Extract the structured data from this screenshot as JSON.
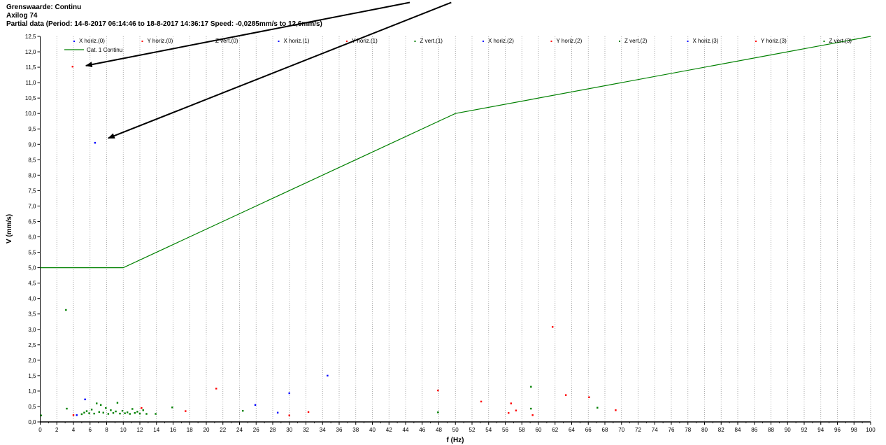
{
  "header": {
    "line1": "Grenswaarde: Continu",
    "line2": "Axilog 74",
    "line3": "Partial data (Period: 14-8-2017 06:14:46 to 18-8-2017 14:36:17 Speed: -0,0285mm/s to 12,6mm/s)"
  },
  "chart_data": {
    "type": "scatter",
    "xlabel": "f (Hz)",
    "ylabel": "V (mm/s)",
    "xlim": [
      0,
      100
    ],
    "ylim": [
      0,
      12.5
    ],
    "x_ticks": [
      "0",
      "2",
      "4",
      "6",
      "8",
      "10",
      "12",
      "14",
      "16",
      "18",
      "20",
      "22",
      "24",
      "26",
      "28",
      "30",
      "32",
      "34",
      "36",
      "38",
      "40",
      "42",
      "44",
      "46",
      "48",
      "50",
      "52",
      "54",
      "56",
      "58",
      "60",
      "62",
      "64",
      "66",
      "68",
      "70",
      "72",
      "74",
      "76",
      "78",
      "80",
      "82",
      "84",
      "86",
      "88",
      "90",
      "92",
      "94",
      "96",
      "98",
      "100"
    ],
    "y_ticks": [
      "0,0",
      "0,5",
      "1,0",
      "1,5",
      "2,0",
      "2,5",
      "3,0",
      "3,5",
      "4,0",
      "4,5",
      "5,0",
      "5,5",
      "6,0",
      "6,5",
      "7,0",
      "7,5",
      "8,0",
      "8,5",
      "9,0",
      "9,5",
      "10,0",
      "10,5",
      "11,0",
      "11,5",
      "12,0",
      "12,5"
    ],
    "grid": "vertical dotted",
    "legend_position": "top",
    "colors": {
      "X": "#0000ff",
      "Y": "#ff0000",
      "Z": "#008000",
      "limit": "#008000"
    },
    "series": [
      {
        "name": "X horiz.(0)",
        "color": "#0000ff",
        "points": [
          [
            6.6,
            9.05
          ],
          [
            5.4,
            0.73
          ],
          [
            4.4,
            0.22
          ]
        ]
      },
      {
        "name": "Y horiz.(0)",
        "color": "#ff0000",
        "points": [
          [
            3.9,
            11.52
          ],
          [
            4.0,
            0.22
          ],
          [
            12.2,
            0.45
          ],
          [
            17.5,
            0.35
          ],
          [
            21.2,
            1.08
          ]
        ]
      },
      {
        "name": "Z vert.(0)",
        "color": "#008000",
        "points": [
          [
            0.1,
            0.21
          ],
          [
            3.1,
            3.63
          ],
          [
            3.2,
            0.43
          ],
          [
            5.0,
            0.25
          ],
          [
            5.3,
            0.3
          ],
          [
            5.6,
            0.35
          ],
          [
            5.9,
            0.28
          ],
          [
            6.2,
            0.4
          ],
          [
            6.5,
            0.27
          ],
          [
            6.8,
            0.6
          ],
          [
            7.1,
            0.32
          ],
          [
            7.3,
            0.55
          ],
          [
            7.6,
            0.3
          ],
          [
            7.9,
            0.45
          ],
          [
            8.2,
            0.26
          ],
          [
            8.5,
            0.38
          ],
          [
            8.8,
            0.29
          ],
          [
            9.1,
            0.34
          ],
          [
            9.3,
            0.62
          ],
          [
            9.6,
            0.27
          ],
          [
            9.9,
            0.36
          ],
          [
            10.2,
            0.28
          ],
          [
            10.5,
            0.31
          ],
          [
            10.8,
            0.26
          ],
          [
            11.1,
            0.42
          ],
          [
            11.4,
            0.29
          ],
          [
            11.7,
            0.33
          ],
          [
            12.0,
            0.27
          ],
          [
            12.4,
            0.38
          ],
          [
            12.8,
            0.26
          ],
          [
            13.9,
            0.26
          ],
          [
            15.9,
            0.47
          ],
          [
            24.4,
            0.36
          ]
        ]
      },
      {
        "name": "X horiz.(1)",
        "color": "#0000ff",
        "points": [
          [
            25.9,
            0.55
          ],
          [
            28.6,
            0.3
          ],
          [
            30.0,
            0.93
          ],
          [
            34.6,
            1.5
          ]
        ]
      },
      {
        "name": "Y horiz.(1)",
        "color": "#ff0000",
        "points": [
          [
            30.0,
            0.21
          ],
          [
            32.3,
            0.32
          ],
          [
            47.9,
            1.02
          ]
        ]
      },
      {
        "name": "Z vert.(1)",
        "color": "#008000",
        "points": [
          [
            47.9,
            0.31
          ]
        ]
      },
      {
        "name": "X horiz.(2)",
        "color": "#0000ff",
        "points": []
      },
      {
        "name": "Y horiz.(2)",
        "color": "#ff0000",
        "points": [
          [
            53.1,
            0.66
          ],
          [
            56.4,
            0.29
          ],
          [
            56.7,
            0.6
          ],
          [
            57.3,
            0.37
          ],
          [
            59.3,
            0.22
          ],
          [
            61.7,
            3.08
          ],
          [
            63.3,
            0.87
          ],
          [
            66.1,
            0.8
          ],
          [
            69.3,
            0.38
          ]
        ]
      },
      {
        "name": "Z vert.(2)",
        "color": "#008000",
        "points": [
          [
            59.1,
            1.14
          ],
          [
            59.1,
            0.43
          ],
          [
            67.1,
            0.46
          ]
        ]
      },
      {
        "name": "X horiz.(3)",
        "color": "#0000ff",
        "points": []
      },
      {
        "name": "Y horiz.(3)",
        "color": "#ff0000",
        "points": []
      },
      {
        "name": "Z vert.(3)",
        "color": "#008000",
        "points": []
      }
    ],
    "limit_line": {
      "name": "Cat. 1 Continu",
      "color": "#008000",
      "points": [
        [
          0,
          5.0
        ],
        [
          10,
          5.0
        ],
        [
          50,
          10.0
        ],
        [
          100,
          12.5
        ]
      ]
    },
    "annotations": [
      {
        "type": "arrow",
        "from": [
          44.5,
          13.6
        ],
        "to": [
          5.5,
          11.55
        ]
      },
      {
        "type": "arrow",
        "from": [
          49.5,
          13.6
        ],
        "to": [
          8.2,
          9.2
        ]
      }
    ]
  }
}
